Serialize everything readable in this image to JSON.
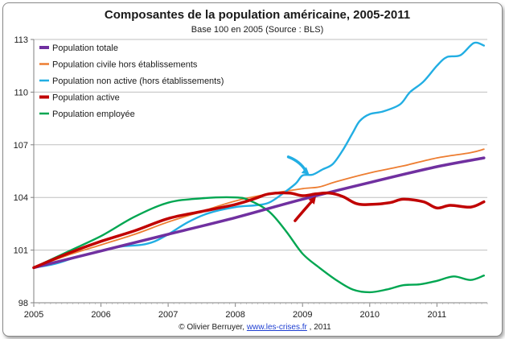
{
  "chart_data": {
    "type": "line",
    "title": "Composantes de la population américaine, 2005-2011",
    "subtitle": "Base 100 en 2005 (Source : BLS)",
    "xlabel": "",
    "ylabel": "",
    "xlim": [
      2005,
      2011.75
    ],
    "ylim": [
      98,
      113
    ],
    "x_ticks": [
      "2005",
      "2006",
      "2007",
      "2008",
      "2009",
      "2010",
      "2011"
    ],
    "y_ticks": [
      "98",
      "101",
      "104",
      "107",
      "110",
      "113"
    ],
    "grid": "horizontal",
    "legend_position": "top-left",
    "series": [
      {
        "name": "Population totale",
        "color": "#7030a0",
        "width": 3.5,
        "points": [
          [
            2005,
            100
          ],
          [
            2006,
            100.95
          ],
          [
            2007,
            101.9
          ],
          [
            2008,
            102.85
          ],
          [
            2009,
            103.9
          ],
          [
            2010,
            104.85
          ],
          [
            2011,
            105.75
          ],
          [
            2011.7,
            106.25
          ]
        ]
      },
      {
        "name": "Population civile hors établissements",
        "color": "#ed7d31",
        "width": 1.8,
        "points": [
          [
            2005,
            100
          ],
          [
            2005.5,
            100.7
          ],
          [
            2006,
            101.3
          ],
          [
            2006.5,
            101.9
          ],
          [
            2007,
            102.6
          ],
          [
            2007.5,
            103.2
          ],
          [
            2008,
            103.8
          ],
          [
            2008.5,
            104.2
          ],
          [
            2009,
            104.5
          ],
          [
            2009.25,
            104.6
          ],
          [
            2009.5,
            104.9
          ],
          [
            2010,
            105.4
          ],
          [
            2010.5,
            105.8
          ],
          [
            2011,
            106.25
          ],
          [
            2011.5,
            106.55
          ],
          [
            2011.7,
            106.75
          ]
        ]
      },
      {
        "name": "Population non active (hors établissements)",
        "color": "#22aee3",
        "width": 2.4,
        "points": [
          [
            2005,
            100
          ],
          [
            2005.3,
            100.2
          ],
          [
            2005.6,
            100.55
          ],
          [
            2006,
            100.95
          ],
          [
            2006.3,
            101.2
          ],
          [
            2006.6,
            101.3
          ],
          [
            2006.8,
            101.5
          ],
          [
            2007,
            101.9
          ],
          [
            2007.3,
            102.6
          ],
          [
            2007.6,
            103.1
          ],
          [
            2008,
            103.45
          ],
          [
            2008.3,
            103.55
          ],
          [
            2008.5,
            103.7
          ],
          [
            2008.7,
            104.2
          ],
          [
            2008.9,
            104.8
          ],
          [
            2009,
            105.25
          ],
          [
            2009.15,
            105.3
          ],
          [
            2009.3,
            105.6
          ],
          [
            2009.45,
            105.9
          ],
          [
            2009.6,
            106.7
          ],
          [
            2009.75,
            107.7
          ],
          [
            2009.85,
            108.35
          ],
          [
            2010,
            108.75
          ],
          [
            2010.2,
            108.9
          ],
          [
            2010.45,
            109.3
          ],
          [
            2010.6,
            110.0
          ],
          [
            2010.8,
            110.6
          ],
          [
            2011,
            111.5
          ],
          [
            2011.15,
            112.0
          ],
          [
            2011.35,
            112.1
          ],
          [
            2011.55,
            112.8
          ],
          [
            2011.7,
            112.65
          ]
        ]
      },
      {
        "name": "Population active",
        "color": "#c00000",
        "width": 3.5,
        "points": [
          [
            2005,
            100
          ],
          [
            2005.5,
            100.8
          ],
          [
            2006,
            101.5
          ],
          [
            2006.5,
            102.1
          ],
          [
            2007,
            102.8
          ],
          [
            2007.5,
            103.2
          ],
          [
            2008,
            103.6
          ],
          [
            2008.3,
            103.95
          ],
          [
            2008.5,
            104.2
          ],
          [
            2008.8,
            104.25
          ],
          [
            2009,
            104.1
          ],
          [
            2009.2,
            104.2
          ],
          [
            2009.4,
            104.25
          ],
          [
            2009.6,
            104.05
          ],
          [
            2009.8,
            103.65
          ],
          [
            2010,
            103.6
          ],
          [
            2010.3,
            103.7
          ],
          [
            2010.5,
            103.9
          ],
          [
            2010.8,
            103.75
          ],
          [
            2011,
            103.4
          ],
          [
            2011.2,
            103.55
          ],
          [
            2011.5,
            103.45
          ],
          [
            2011.7,
            103.75
          ]
        ]
      },
      {
        "name": "Population employée",
        "color": "#00a651",
        "width": 2.4,
        "points": [
          [
            2005,
            100
          ],
          [
            2005.5,
            100.9
          ],
          [
            2006,
            101.8
          ],
          [
            2006.5,
            102.9
          ],
          [
            2007,
            103.7
          ],
          [
            2007.5,
            103.95
          ],
          [
            2008,
            104.0
          ],
          [
            2008.2,
            103.85
          ],
          [
            2008.5,
            103.2
          ],
          [
            2008.75,
            102.1
          ],
          [
            2009,
            100.8
          ],
          [
            2009.25,
            100.0
          ],
          [
            2009.5,
            99.3
          ],
          [
            2009.75,
            98.75
          ],
          [
            2010,
            98.6
          ],
          [
            2010.25,
            98.75
          ],
          [
            2010.5,
            99.0
          ],
          [
            2010.75,
            99.05
          ],
          [
            2011,
            99.25
          ],
          [
            2011.25,
            99.5
          ],
          [
            2011.5,
            99.3
          ],
          [
            2011.7,
            99.55
          ]
        ]
      }
    ],
    "annotations": [
      {
        "type": "arrow",
        "color": "#22aee3",
        "points_to": "Population non active (hors établissements)",
        "at": [
          2009.1,
          105.3
        ]
      },
      {
        "type": "arrow",
        "color": "#c00000",
        "points_to": "Population active",
        "at": [
          2009.2,
          104.05
        ]
      }
    ]
  },
  "footer": {
    "credit": "© Olivier Berruyer,",
    "link": "www.les-crises.fr",
    "year": ", 2011"
  }
}
